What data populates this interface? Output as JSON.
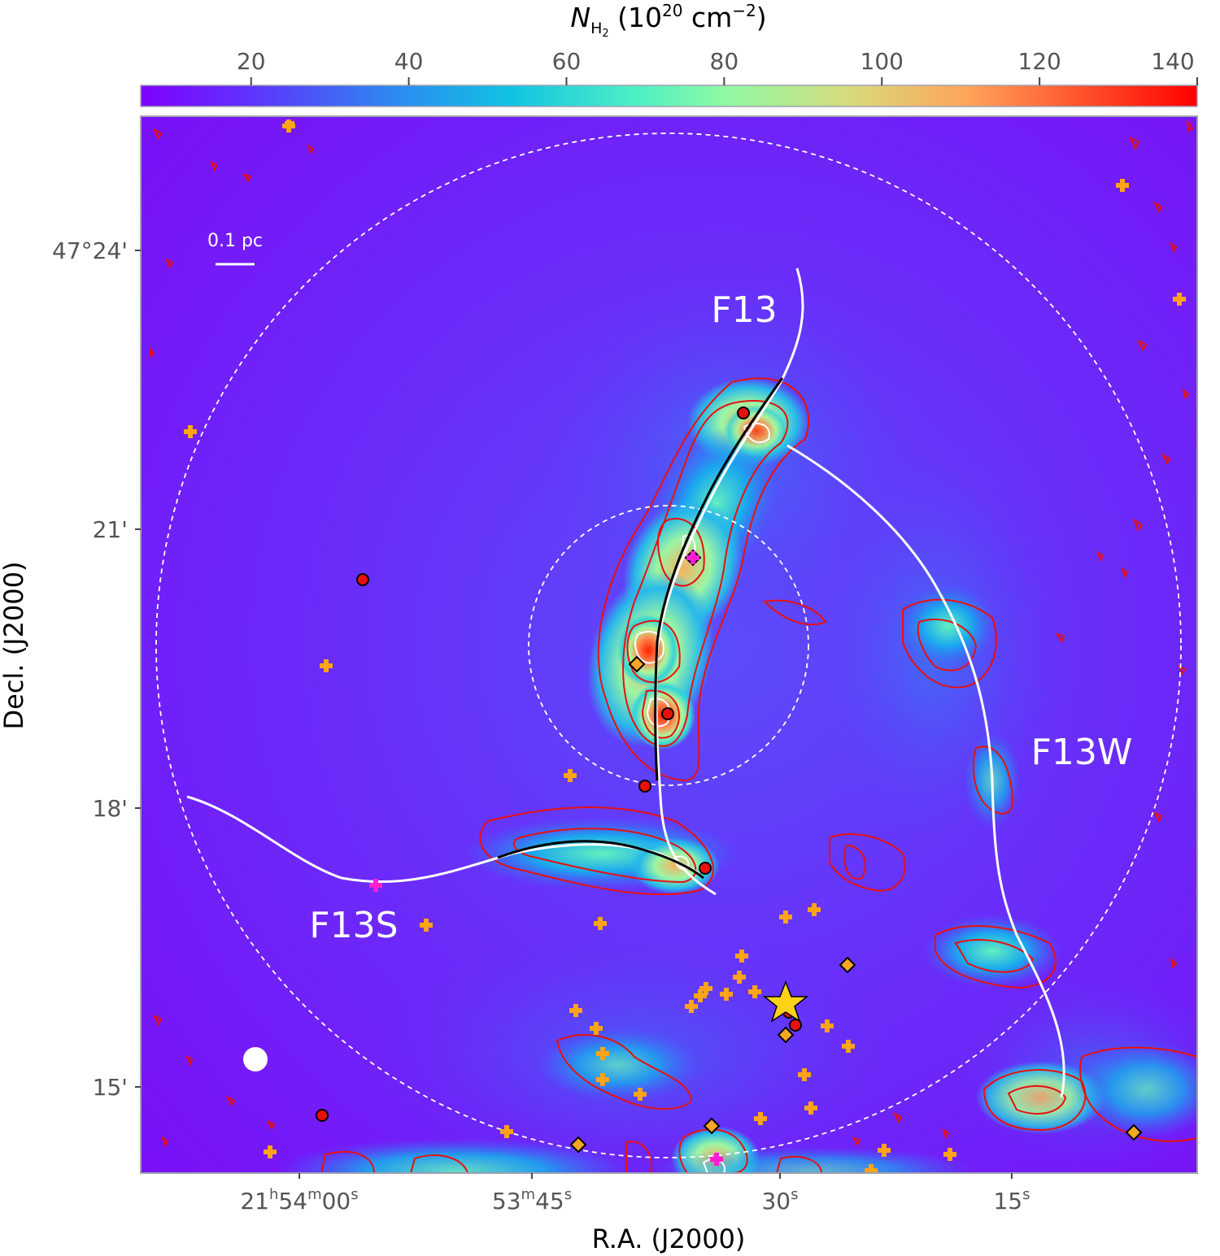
{
  "colorbar": {
    "label_symbol": "N",
    "label_sub": "H",
    "label_sub2": "2",
    "label_units": "(10",
    "label_exp": "20",
    "label_units2": " cm",
    "label_exp2": "−2",
    "label_close": ")",
    "ticks": [
      "20",
      "40",
      "60",
      "80",
      "100",
      "120",
      "140"
    ],
    "tick_values": [
      20,
      40,
      60,
      80,
      100,
      120,
      140
    ],
    "range": [
      6,
      140
    ],
    "colormap": "rainbow"
  },
  "axes": {
    "xlabel": "R.A. (J2000)",
    "ylabel": "Decl. (J2000)",
    "xticks": [
      {
        "h": "21",
        "hu": "h",
        "m": "54",
        "mu": "m",
        "s": "00",
        "su": "s"
      },
      {
        "m": "53",
        "mu": "m",
        "s": "45",
        "su": "s"
      },
      {
        "s": "30",
        "su": "s"
      },
      {
        "s": "15",
        "su": "s"
      }
    ],
    "yticks": [
      "47°24'",
      "21'",
      "18'",
      "15'"
    ]
  },
  "labels": {
    "scalebar": "0.1 pc",
    "filament_f13": "F13",
    "filament_f13w": "F13W",
    "filament_f13s": "F13S"
  },
  "colors": {
    "background_map": "#7a0cf6",
    "contour_red": "#e8100c",
    "contour_white": "#ffffff",
    "spine": "#ffffff",
    "crest": "#000000",
    "cross_marker": "#ffa31a",
    "magenta_marker": "#ff1ed4",
    "star": "#ffd21a"
  }
}
